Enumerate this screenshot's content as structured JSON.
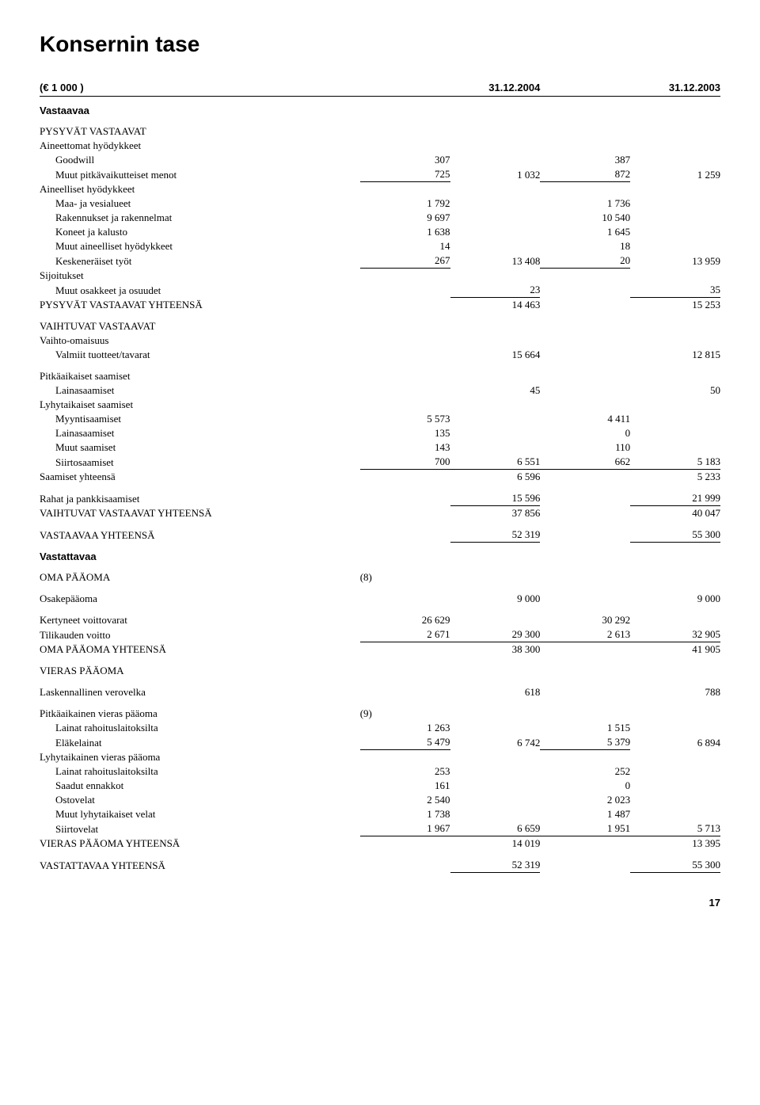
{
  "title": "Konsernin tase",
  "header": {
    "unit": "(€ 1 000 )",
    "col2004": "31.12.2004",
    "col2003": "31.12.2003"
  },
  "vastaavaa": "Vastaavaa",
  "pysyvat": "PYSYVÄT VASTAAVAT",
  "aineettomat": "Aineettomat hyödykkeet",
  "goodwill": {
    "label": "Goodwill",
    "a": "307",
    "b": "387"
  },
  "muutpitk": {
    "label": "Muut pitkävaikutteiset menot",
    "a": "725",
    "atot": "1 032",
    "b": "872",
    "btot": "1 259"
  },
  "aineelliset": "Aineelliset hyödykkeet",
  "maavesi": {
    "label": "Maa- ja vesialueet",
    "a": "1 792",
    "b": "1 736"
  },
  "rakenn": {
    "label": "Rakennukset ja rakennelmat",
    "a": "9 697",
    "b": "10 540"
  },
  "koneet": {
    "label": "Koneet ja kalusto",
    "a": "1 638",
    "b": "1 645"
  },
  "muutaineell": {
    "label": "Muut aineelliset hyödykkeet",
    "a": "14",
    "b": "18"
  },
  "kesken": {
    "label": "Keskeneräiset työt",
    "a": "267",
    "atot": "13 408",
    "b": "20",
    "btot": "13 959"
  },
  "sijoitukset": "Sijoitukset",
  "muutosak": {
    "label": "Muut osakkeet ja osuudet",
    "atot": "23",
    "btot": "35"
  },
  "pysyvattot": {
    "label": "PYSYVÄT VASTAAVAT YHTEENSÄ",
    "atot": "14 463",
    "btot": "15 253"
  },
  "vaihtuvat": "VAIHTUVAT VASTAAVAT",
  "vaihtoom": "Vaihto-omaisuus",
  "valmiit": {
    "label": "Valmiit tuotteet/tavarat",
    "atot": "15 664",
    "btot": "12 815"
  },
  "pitkasaam": "Pitkäaikaiset saamiset",
  "lainasaam1": {
    "label": "Lainasaamiset",
    "atot": "45",
    "btot": "50"
  },
  "lyhytsaam": "Lyhytaikaiset saamiset",
  "myyntisaam": {
    "label": "Myyntisaamiset",
    "a": "5 573",
    "b": "4 411"
  },
  "lainasaam2": {
    "label": "Lainasaamiset",
    "a": "135",
    "b": "0"
  },
  "muutsaam": {
    "label": "Muut saamiset",
    "a": "143",
    "b": "110"
  },
  "siirtosaam": {
    "label": "Siirtosaamiset",
    "a": "700",
    "atot": "6 551",
    "b": "662",
    "btot": "5 183"
  },
  "saamyht": {
    "label": "Saamiset yhteensä",
    "atot": "6 596",
    "btot": "5 233"
  },
  "rahat": {
    "label": "Rahat ja pankkisaamiset",
    "atot": "15 596",
    "btot": "21 999"
  },
  "vaihttot": {
    "label": "VAIHTUVAT VASTAAVAT YHTEENSÄ",
    "atot": "37 856",
    "btot": "40 047"
  },
  "vastaavaatot": {
    "label": "VASTAAVAA YHTEENSÄ",
    "atot": "52 319",
    "btot": "55 300"
  },
  "vastattavaa": "Vastattavaa",
  "omapaa": {
    "label": "OMA PÄÄOMA",
    "note": "(8)"
  },
  "osakepaa": {
    "label": "Osakepääoma",
    "atot": "9 000",
    "btot": "9 000"
  },
  "kertyneet": {
    "label": "Kertyneet voittovarat",
    "a": "26 629",
    "b": "30 292"
  },
  "tilikvoitto": {
    "label": "Tilikauden voitto",
    "a": "2 671",
    "atot": "29 300",
    "b": "2 613",
    "btot": "32 905"
  },
  "omapaatot": {
    "label": "OMA PÄÄOMA YHTEENSÄ",
    "atot": "38 300",
    "btot": "41 905"
  },
  "vieraspaa": "VIERAS PÄÄOMA",
  "laskvero": {
    "label": "Laskennallinen verovelka",
    "atot": "618",
    "btot": "788"
  },
  "pitkavieras": {
    "label": "Pitkäaikainen vieras pääoma",
    "note": "(9)"
  },
  "lainatrahoit1": {
    "label": "Lainat rahoituslaitoksilta",
    "a": "1 263",
    "b": "1 515"
  },
  "elakelainat": {
    "label": "Eläkelainat",
    "a": "5 479",
    "atot": "6 742",
    "b": "5 379",
    "btot": "6 894"
  },
  "lyhytvieras": "Lyhytaikainen vieras pääoma",
  "lainatrahoit2": {
    "label": "Lainat rahoituslaitoksilta",
    "a": "253",
    "b": "252"
  },
  "saadutenn": {
    "label": "Saadut ennakkot",
    "a": "161",
    "b": "0"
  },
  "ostovelat": {
    "label": "Ostovelat",
    "a": "2 540",
    "b": "2 023"
  },
  "muutlyhyt": {
    "label": "Muut lyhytaikaiset velat",
    "a": "1 738",
    "b": "1 487"
  },
  "siirtovelat": {
    "label": "Siirtovelat",
    "a": "1 967",
    "atot": "6 659",
    "b": "1 951",
    "btot": "5 713"
  },
  "vieraspaatot": {
    "label": "VIERAS PÄÄOMA YHTEENSÄ",
    "atot": "14 019",
    "btot": "13 395"
  },
  "vastattavaatot": {
    "label": "VASTATTAVAA YHTEENSÄ",
    "atot": "52 319",
    "btot": "55 300"
  },
  "pagenum": "17"
}
